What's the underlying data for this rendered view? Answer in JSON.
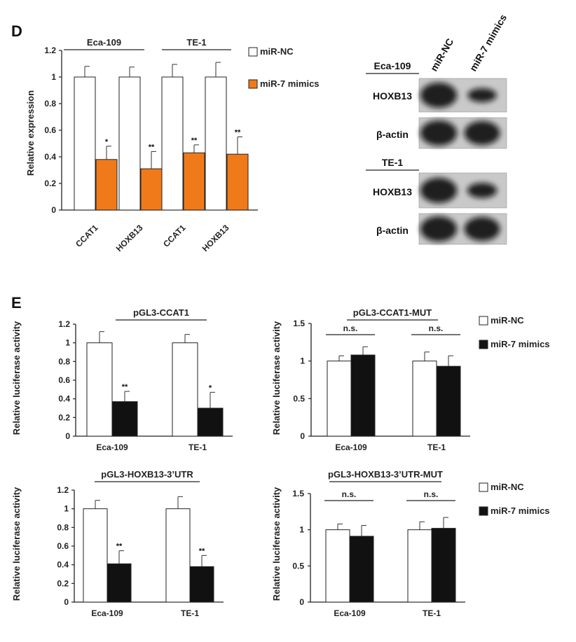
{
  "panels": {
    "d_letter": "D",
    "e_letter": "E"
  },
  "colors": {
    "nc": "#ffffff",
    "mimics_d": "#f07a1a",
    "mimics_e": "#111111",
    "axis": "#222222"
  },
  "chart_data": [
    {
      "id": "D",
      "type": "bar",
      "title": "",
      "groups": [
        {
          "label": "Eca-109",
          "categories": [
            "CCAT1",
            "HOXB13"
          ]
        },
        {
          "label": "TE-1",
          "categories": [
            "CCAT1",
            "HOXB13"
          ]
        }
      ],
      "categories": [
        "CCAT1",
        "HOXB13",
        "CCAT1",
        "HOXB13"
      ],
      "ylabel": "Relative expression",
      "xlabel": "",
      "ylim": [
        0,
        1.2
      ],
      "yticks": [
        "0",
        "0.2",
        "0.4",
        "0.6",
        "0.8",
        "1",
        "1.2"
      ],
      "series": [
        {
          "name": "miR-NC",
          "values": [
            1,
            1,
            1,
            1
          ],
          "errors": [
            0.08,
            0.075,
            0.095,
            0.11
          ]
        },
        {
          "name": "miR-7 mimics",
          "values": [
            0.38,
            0.31,
            0.43,
            0.42
          ],
          "errors": [
            0.1,
            0.13,
            0.06,
            0.13
          ]
        }
      ],
      "annotations": [
        "*",
        "**",
        "**",
        "**"
      ],
      "legend": "top-right"
    },
    {
      "id": "E1",
      "type": "bar",
      "title": "pGL3-CCAT1",
      "categories": [
        "Eca-109",
        "TE-1"
      ],
      "ylabel": "Relative luciferase activity",
      "xlabel": "",
      "ylim": [
        0,
        1.2
      ],
      "yticks": [
        "0",
        "0.2",
        "0.4",
        "0.6",
        "0.8",
        "1",
        "1.2"
      ],
      "series": [
        {
          "name": "miR-NC",
          "values": [
            1,
            1
          ],
          "errors": [
            0.12,
            0.09
          ]
        },
        {
          "name": "miR-7 mimics",
          "values": [
            0.37,
            0.3
          ],
          "errors": [
            0.11,
            0.17
          ]
        }
      ],
      "annotations": [
        "**",
        "*"
      ]
    },
    {
      "id": "E2",
      "type": "bar",
      "title": "pGL3-CCAT1-MUT",
      "categories": [
        "Eca-109",
        "TE-1"
      ],
      "ylabel": "Relative luciferase activity",
      "xlabel": "",
      "ylim": [
        0,
        1.5
      ],
      "yticks": [
        "0",
        "0.5",
        "1",
        "1.5"
      ],
      "series": [
        {
          "name": "miR-NC",
          "values": [
            1,
            1
          ],
          "errors": [
            0.07,
            0.12
          ]
        },
        {
          "name": "miR-7 mimics",
          "values": [
            1.08,
            0.93
          ],
          "errors": [
            0.11,
            0.14
          ]
        }
      ],
      "annotations": [
        "n.s.",
        "n.s."
      ],
      "legend": "top-right"
    },
    {
      "id": "E3",
      "type": "bar",
      "title": "pGL3-HOXB13-3’UTR",
      "categories": [
        "Eca-109",
        "TE-1"
      ],
      "ylabel": "Relative luciferase activity",
      "xlabel": "",
      "ylim": [
        0,
        1.2
      ],
      "yticks": [
        "0",
        "0.2",
        "0.4",
        "0.6",
        "0.8",
        "1",
        "1.2"
      ],
      "series": [
        {
          "name": "miR-NC",
          "values": [
            1,
            1
          ],
          "errors": [
            0.09,
            0.13
          ]
        },
        {
          "name": "miR-7 mimics",
          "values": [
            0.41,
            0.38
          ],
          "errors": [
            0.14,
            0.12
          ]
        }
      ],
      "annotations": [
        "**",
        "**"
      ]
    },
    {
      "id": "E4",
      "type": "bar",
      "title": "pGL3-HOXB13-3’UTR-MUT",
      "categories": [
        "Eca-109",
        "TE-1"
      ],
      "ylabel": "Relative luciferase activity",
      "xlabel": "",
      "ylim": [
        0,
        1.5
      ],
      "yticks": [
        "0",
        "0.5",
        "1",
        "1.5"
      ],
      "series": [
        {
          "name": "miR-NC",
          "values": [
            1,
            1
          ],
          "errors": [
            0.08,
            0.11
          ]
        },
        {
          "name": "miR-7 mimics",
          "values": [
            0.91,
            1.02
          ],
          "errors": [
            0.15,
            0.15
          ]
        }
      ],
      "annotations": [
        "n.s.",
        "n.s."
      ],
      "legend": "top-right"
    }
  ],
  "western_blot": {
    "columns": [
      "miR-NC",
      "miR-7 mimics"
    ],
    "cell_lines": [
      "Eca-109",
      "TE-1"
    ],
    "rows": [
      "HOXB13",
      "β-actin",
      "HOXB13",
      "β-actin"
    ],
    "intensity": [
      [
        1.0,
        0.55
      ],
      [
        1.0,
        0.95
      ],
      [
        1.0,
        0.6
      ],
      [
        1.0,
        0.95
      ]
    ]
  }
}
